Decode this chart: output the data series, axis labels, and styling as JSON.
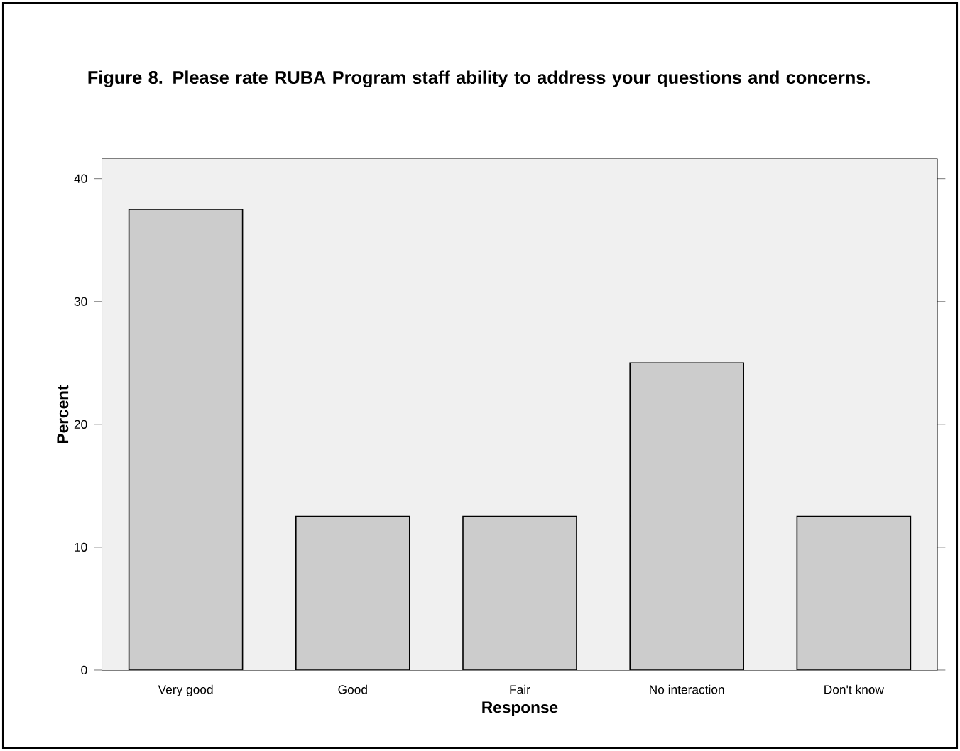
{
  "chart_data": {
    "type": "bar",
    "title": "Figure 8.  Please rate RUBA Program staff ability to address your questions and concerns.",
    "xlabel": "Response",
    "ylabel": "Percent",
    "categories": [
      "Very good",
      "Good",
      "Fair",
      "No interaction",
      "Don't know"
    ],
    "values": [
      37.5,
      12.5,
      12.5,
      25,
      12.5
    ],
    "color": "#cccccc",
    "ylim": [
      0,
      41.6
    ],
    "yticks": [
      0,
      10,
      20,
      30,
      40
    ],
    "grid": false
  }
}
